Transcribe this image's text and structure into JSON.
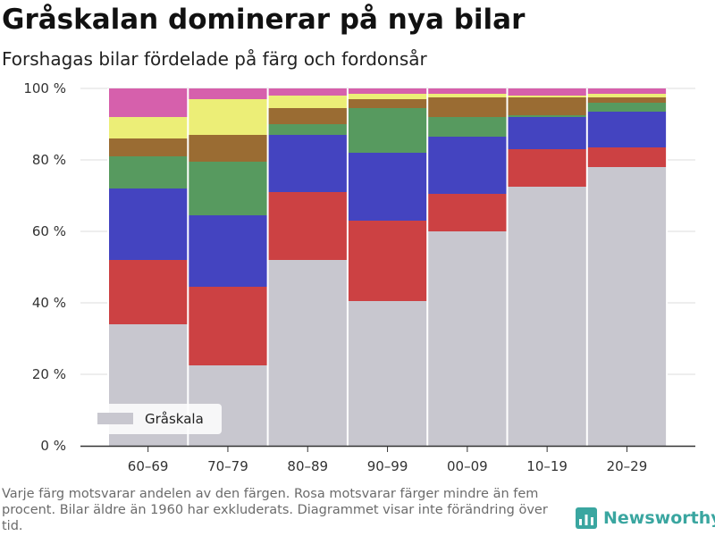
{
  "title": "Gråskalan dominerar på nya bilar",
  "subtitle": "Forshagas bilar fördelade på färg och fordonsår",
  "footnote": "Varje färg motsvarar andelen av den färgen. Rosa motsvarar färger mindre än fem procent. Bilar äldre än 1960 har exkluderats. Diagrammet visar inte förändring över tid.",
  "brand": {
    "name": "Newsworthy",
    "logo_icon": "bar-chart-icon",
    "color": "#3aa6a0"
  },
  "chart_data": {
    "type": "bar",
    "stacked": true,
    "categories": [
      "60–69",
      "70–79",
      "80–89",
      "90–99",
      "00–09",
      "10–19",
      "20–29"
    ],
    "yticks": [
      "0 %",
      "20 %",
      "40 %",
      "60 %",
      "80 %",
      "100 %"
    ],
    "ylim": [
      0,
      100
    ],
    "grid": true,
    "legend": {
      "position": "bottom-left",
      "entries": [
        "Gråskala"
      ]
    },
    "series": [
      {
        "name": "Gråskala",
        "color": "#c8c7cf",
        "values": [
          34,
          22.5,
          52,
          40.5,
          60,
          72.5,
          78
        ]
      },
      {
        "color": "#cc4143",
        "values": [
          18,
          22,
          19,
          22.5,
          10.5,
          10.5,
          5.5
        ]
      },
      {
        "color": "#4444c0",
        "values": [
          20,
          20,
          16,
          19,
          16,
          9,
          10
        ]
      },
      {
        "color": "#579a5f",
        "values": [
          9,
          15,
          3,
          12.5,
          5.5,
          0.5,
          2.5
        ]
      },
      {
        "color": "#9a6c33",
        "values": [
          5,
          7.5,
          4.5,
          2.5,
          5.5,
          5,
          1.5
        ]
      },
      {
        "color": "#ecee77",
        "values": [
          6,
          10,
          3.5,
          1.5,
          1,
          0.5,
          1
        ]
      },
      {
        "color": "#d660ac",
        "values": [
          8,
          3,
          2,
          1.5,
          1.5,
          2,
          1.5
        ]
      }
    ]
  }
}
